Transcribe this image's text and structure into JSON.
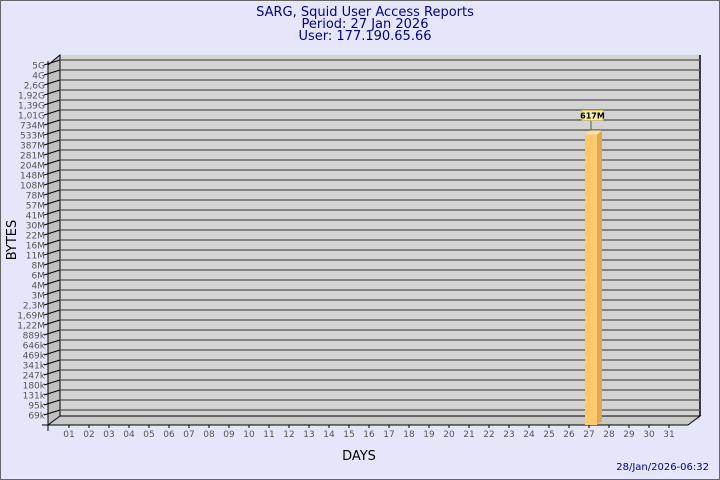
{
  "chart_data": {
    "type": "bar",
    "title_lines": [
      "SARG, Squid User Access Reports",
      "Period: 27 Jan 2026",
      "User: 177.190.65.66"
    ],
    "xlabel": "DAYS",
    "ylabel": "BYTES",
    "y_scale": "log",
    "y_ticks": [
      "5G",
      "4G",
      "2,6G",
      "1,92G",
      "1,39G",
      "1,01G",
      "734M",
      "533M",
      "387M",
      "281M",
      "204M",
      "148M",
      "108M",
      "78M",
      "57M",
      "41M",
      "30M",
      "22M",
      "16M",
      "11M",
      "8M",
      "6M",
      "4M",
      "3M",
      "2,3M",
      "1,69M",
      "1,22M",
      "889k",
      "646k",
      "469k",
      "341k",
      "247k",
      "180k",
      "131k",
      "95k",
      "69k"
    ],
    "categories": [
      "01",
      "02",
      "03",
      "04",
      "05",
      "06",
      "07",
      "08",
      "09",
      "10",
      "11",
      "12",
      "13",
      "14",
      "15",
      "16",
      "17",
      "18",
      "19",
      "20",
      "21",
      "22",
      "23",
      "24",
      "25",
      "26",
      "27",
      "28",
      "29",
      "30",
      "31"
    ],
    "bars": [
      {
        "category": "27",
        "value_label": "617M",
        "value_bytes": 617000000
      }
    ],
    "grid": true,
    "colors": {
      "bar_front": "#ffc870",
      "bar_side": "#e0a84e",
      "wall": "#d3d3d3",
      "background": "#e6e6fa",
      "title": "#00008b"
    }
  },
  "footer": {
    "timestamp": "28/Jan/2026-06:32"
  }
}
